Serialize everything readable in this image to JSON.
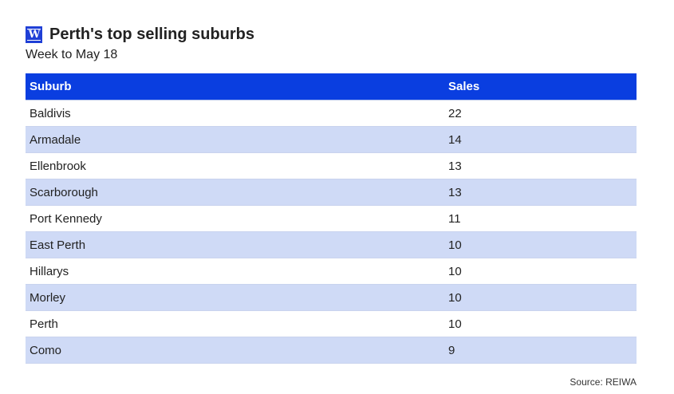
{
  "header": {
    "logo_text": "W",
    "title": "Perth's top selling suburbs",
    "subtitle": "Week to May 18"
  },
  "table": {
    "columns": [
      "Suburb",
      "Sales"
    ],
    "rows": [
      [
        "Baldivis",
        "22"
      ],
      [
        "Armadale",
        "14"
      ],
      [
        "Ellenbrook",
        "13"
      ],
      [
        "Scarborough",
        "13"
      ],
      [
        "Port Kennedy",
        "11"
      ],
      [
        "East Perth",
        "10"
      ],
      [
        "Hillarys",
        "10"
      ],
      [
        "Morley",
        "10"
      ],
      [
        "Perth",
        "10"
      ],
      [
        "Como",
        "9"
      ]
    ]
  },
  "source": "Source: REIWA",
  "colors": {
    "header_bg": "#0a3ee0",
    "alt_row_bg": "#cfdaf6",
    "logo_bg": "#1f3fd6"
  },
  "chart_data": {
    "type": "table",
    "title": "Perth's top selling suburbs",
    "subtitle": "Week to May 18",
    "columns": [
      "Suburb",
      "Sales"
    ],
    "categories": [
      "Baldivis",
      "Armadale",
      "Ellenbrook",
      "Scarborough",
      "Port Kennedy",
      "East Perth",
      "Hillarys",
      "Morley",
      "Perth",
      "Como"
    ],
    "values": [
      22,
      14,
      13,
      13,
      11,
      10,
      10,
      10,
      10,
      9
    ],
    "source": "Source: REIWA"
  }
}
